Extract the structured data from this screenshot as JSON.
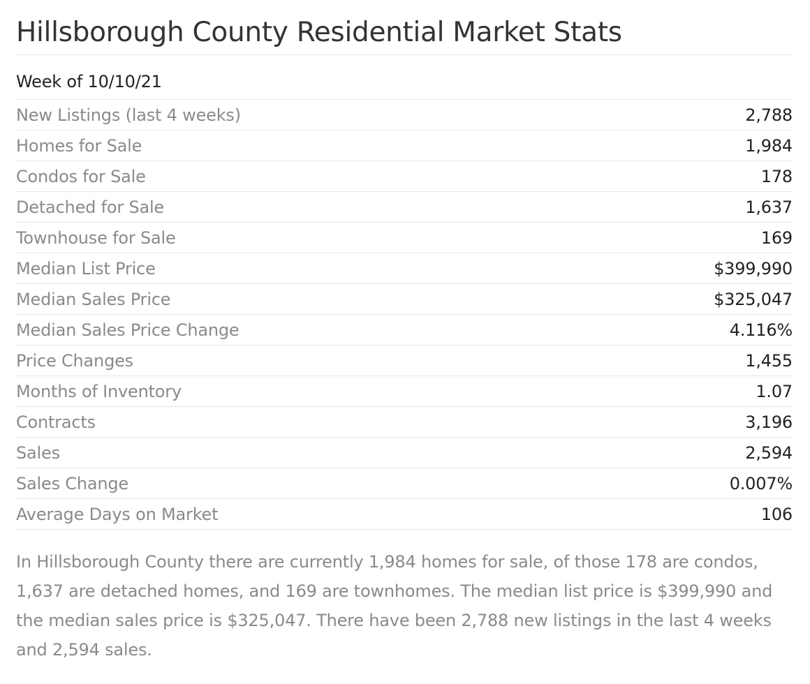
{
  "page": {
    "title": "Hillsborough County Residential Market Stats",
    "week_label": "Week of 10/10/21"
  },
  "stats": [
    {
      "label": "New Listings (last 4 weeks)",
      "value": "2,788"
    },
    {
      "label": "Homes for Sale",
      "value": "1,984"
    },
    {
      "label": "Condos for Sale",
      "value": "178"
    },
    {
      "label": "Detached for Sale",
      "value": "1,637"
    },
    {
      "label": "Townhouse for Sale",
      "value": "169"
    },
    {
      "label": "Median List Price",
      "value": "$399,990"
    },
    {
      "label": "Median Sales Price",
      "value": "$325,047"
    },
    {
      "label": "Median Sales Price Change",
      "value": "4.116%"
    },
    {
      "label": "Price Changes",
      "value": "1,455"
    },
    {
      "label": "Months of Inventory",
      "value": "1.07"
    },
    {
      "label": "Contracts",
      "value": "3,196"
    },
    {
      "label": "Sales",
      "value": "2,594"
    },
    {
      "label": "Sales Change",
      "value": "0.007%"
    },
    {
      "label": "Average Days on Market",
      "value": "106"
    }
  ],
  "summary": "In Hillsborough County there are currently 1,984 homes for sale, of those 178 are condos, 1,637 are detached homes, and 169 are townhomes. The median list price is $399,990 and the median sales price is $325,047. There have been 2,788 new listings in the last 4 weeks and 2,594 sales."
}
